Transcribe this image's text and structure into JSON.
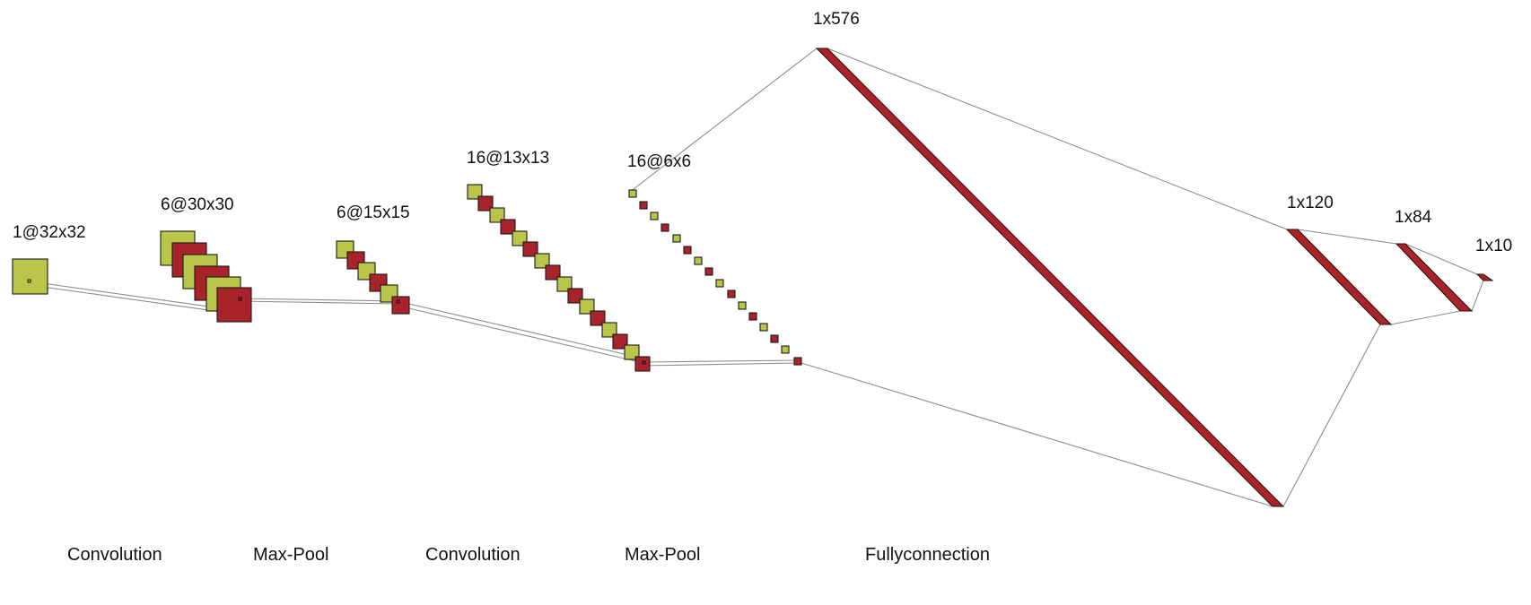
{
  "colors": {
    "feature_map_primary": "#b9c64a",
    "feature_map_secondary": "#a8242a",
    "connector": "#8c8c8c",
    "text": "#111111"
  },
  "layers": [
    {
      "id": "input",
      "label": "1@32x32"
    },
    {
      "id": "conv1",
      "label": "6@30x30"
    },
    {
      "id": "pool1",
      "label": "6@15x15"
    },
    {
      "id": "conv2",
      "label": "16@13x13"
    },
    {
      "id": "pool2",
      "label": "16@6x6"
    },
    {
      "id": "flatten",
      "label": "1x576"
    },
    {
      "id": "fc1",
      "label": "1x120"
    },
    {
      "id": "fc2",
      "label": "1x84"
    },
    {
      "id": "output",
      "label": "1x10"
    }
  ],
  "operations": [
    {
      "id": "op-conv1",
      "label": "Convolution"
    },
    {
      "id": "op-pool1",
      "label": "Max-Pool"
    },
    {
      "id": "op-conv2",
      "label": "Convolution"
    },
    {
      "id": "op-pool2",
      "label": "Max-Pool"
    },
    {
      "id": "op-fc",
      "label": "Fullyconnection"
    }
  ]
}
